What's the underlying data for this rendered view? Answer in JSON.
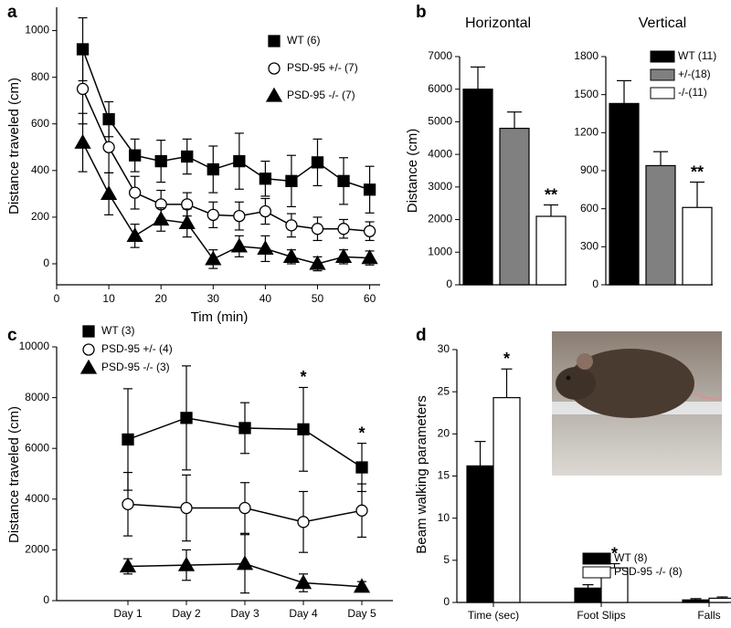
{
  "chart_data": [
    {
      "type": "line",
      "panel": "a",
      "x_label": "Tim (min)",
      "y_label": "Distance traveled (cm)",
      "x": [
        5,
        10,
        15,
        20,
        25,
        30,
        35,
        40,
        45,
        50,
        55,
        60
      ],
      "xlim": [
        0,
        62
      ],
      "xticks": [
        0,
        10,
        20,
        30,
        40,
        50,
        60
      ],
      "ylim": [
        -90,
        1100
      ],
      "yticks": [
        0,
        200,
        400,
        600,
        800,
        1000
      ],
      "series": [
        {
          "name": "WT (6)",
          "marker": "square",
          "color": "#000000",
          "values": [
            920,
            620,
            465,
            440,
            460,
            405,
            440,
            365,
            355,
            435,
            355,
            318
          ],
          "errors": [
            135,
            75,
            70,
            90,
            75,
            100,
            120,
            75,
            110,
            100,
            100,
            100
          ]
        },
        {
          "name": "PSD-95 +/- (7)",
          "marker": "circle",
          "color": "#ffffff",
          "values": [
            750,
            500,
            305,
            255,
            255,
            210,
            205,
            225,
            165,
            150,
            150,
            140
          ],
          "errors": [
            150,
            110,
            70,
            60,
            50,
            55,
            60,
            55,
            50,
            50,
            40,
            40
          ]
        },
        {
          "name": "PSD-95 -/- (7)",
          "marker": "triangle",
          "color": "#000000",
          "values": [
            520,
            300,
            120,
            190,
            175,
            20,
            75,
            65,
            30,
            0,
            30,
            25
          ],
          "errors": [
            125,
            90,
            50,
            50,
            60,
            40,
            45,
            55,
            30,
            30,
            30,
            30
          ]
        }
      ]
    },
    {
      "type": "bar",
      "panel": "b",
      "title": "Horizontal",
      "y_label": "Distance (cm)",
      "ylim": [
        0,
        7000
      ],
      "yticks": [
        0,
        1000,
        2000,
        3000,
        4000,
        5000,
        6000,
        7000
      ],
      "series": [
        {
          "color": "#000000",
          "values": [
            6000
          ],
          "errors": [
            680
          ]
        },
        {
          "color": "#808080",
          "values": [
            4800
          ],
          "errors": [
            500
          ]
        },
        {
          "color": "#ffffff",
          "values": [
            2100
          ],
          "errors": [
            350
          ],
          "annotations": [
            "**"
          ]
        }
      ]
    },
    {
      "type": "bar",
      "title": "Vertical",
      "ylim": [
        0,
        1800
      ],
      "yticks": [
        0,
        300,
        600,
        900,
        1200,
        1500,
        1800
      ],
      "series": [
        {
          "name": "WT (11)",
          "color": "#000000",
          "values": [
            1430
          ],
          "errors": [
            180
          ]
        },
        {
          "name": "+/-(18)",
          "color": "#808080",
          "values": [
            940
          ],
          "errors": [
            110
          ]
        },
        {
          "name": "-/-(11)",
          "color": "#ffffff",
          "values": [
            610
          ],
          "errors": [
            200
          ],
          "annotations": [
            "**"
          ]
        }
      ]
    },
    {
      "type": "line",
      "panel": "c",
      "y_label": "Distance traveled (cm)",
      "categories": [
        "Day 1",
        "Day 2",
        "Day 3",
        "Day 4",
        "Day 5"
      ],
      "ylim": [
        0,
        10000
      ],
      "yticks": [
        0,
        2000,
        4000,
        6000,
        8000,
        10000
      ],
      "series": [
        {
          "name": "WT (3)",
          "marker": "square",
          "color": "#000000",
          "values": [
            6350,
            7200,
            6800,
            6750,
            5250
          ],
          "errors": [
            2000,
            2050,
            1000,
            1650,
            950
          ],
          "annotations": [
            null,
            null,
            null,
            "*",
            "*"
          ]
        },
        {
          "name": "PSD-95 +/- (4)",
          "marker": "circle",
          "color": "#ffffff",
          "values": [
            3800,
            3650,
            3650,
            3100,
            3550
          ],
          "errors": [
            1250,
            1300,
            1000,
            1200,
            1050
          ]
        },
        {
          "name": "PSD-95 -/- (3)",
          "marker": "triangle",
          "color": "#000000",
          "values": [
            1350,
            1400,
            1450,
            700,
            550
          ],
          "errors": [
            300,
            600,
            1150,
            350,
            200
          ]
        }
      ]
    },
    {
      "type": "bar",
      "panel": "d",
      "y_label": "Beam walking parameters",
      "categories": [
        "Time (sec)",
        "Foot Slips",
        "Falls"
      ],
      "ylim": [
        0,
        30
      ],
      "yticks": [
        0,
        5,
        10,
        15,
        20,
        25,
        30
      ],
      "series": [
        {
          "name": "WT (8)",
          "color": "#000000",
          "values": [
            16.2,
            1.7,
            0.3
          ],
          "errors": [
            2.9,
            0.4,
            0.15
          ]
        },
        {
          "name": "PSD-95 -/- (8)",
          "color": "#ffffff",
          "values": [
            24.3,
            4.1,
            0.5
          ],
          "errors": [
            3.4,
            0.5,
            0.15
          ],
          "annotations": [
            "*",
            "*",
            null
          ]
        }
      ]
    }
  ]
}
